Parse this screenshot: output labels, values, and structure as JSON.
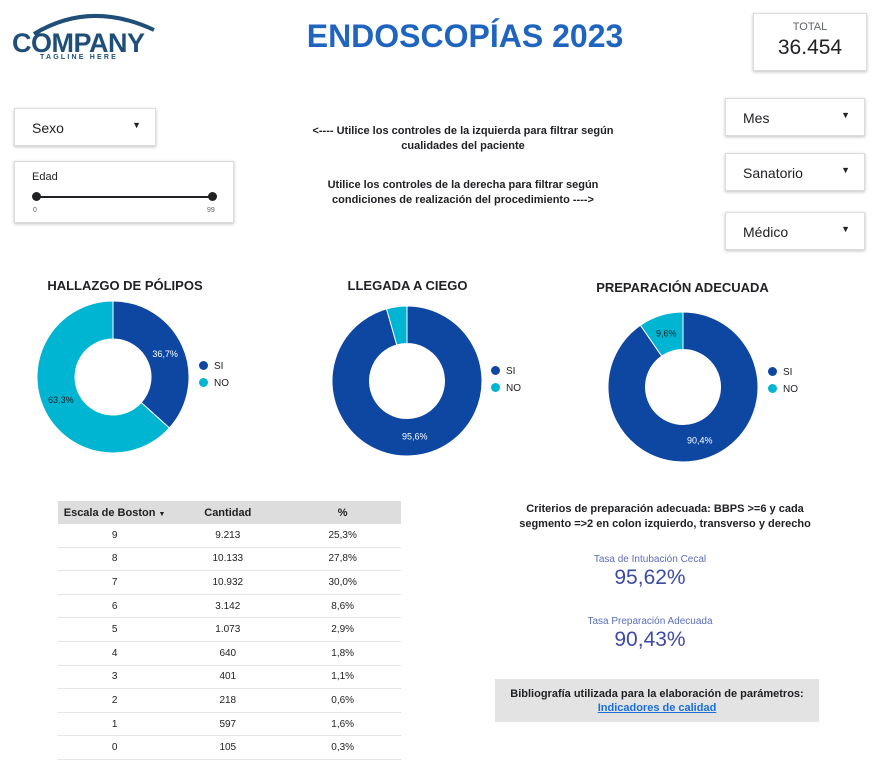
{
  "logo": {
    "name": "COMPANY",
    "tagline": "TAGLINE HERE"
  },
  "title": "ENDOSCOPÍAS 2023",
  "total": {
    "label": "TOTAL",
    "value": "36.454"
  },
  "filters_left": {
    "sexo": "Sexo",
    "edad": {
      "label": "Edad",
      "min": "0",
      "max": "99"
    }
  },
  "filters_right": {
    "mes": "Mes",
    "sanatorio": "Sanatorio",
    "medico": "Médico"
  },
  "hints": {
    "left_1": "<----  Utilice los controles de la izquierda para filtrar según",
    "left_2": "cualidades del paciente",
    "right_1": "Utilice los controles de la derecha para filtrar según",
    "right_2": "condiciones de realización del procedimiento ---->"
  },
  "colors": {
    "dark_blue": "#0d47a1",
    "cyan": "#00b5d1",
    "title_blue": "#1f65c0"
  },
  "legend": {
    "si": "SI",
    "no": "NO"
  },
  "chart_data": [
    {
      "type": "pie",
      "title": "HALLAZGO DE PÓLIPOS",
      "categories": [
        "SI",
        "NO"
      ],
      "values": [
        36.7,
        63.3
      ],
      "labels": [
        "36,7%",
        "63,3%"
      ],
      "legend": "right"
    },
    {
      "type": "pie",
      "title": "LLEGADA A CIEGO",
      "categories": [
        "SI",
        "NO"
      ],
      "values": [
        95.6,
        4.4
      ],
      "labels": [
        "95,6%",
        ""
      ],
      "legend": "right"
    },
    {
      "type": "pie",
      "title": "PREPARACIÓN ADECUADA",
      "categories": [
        "SI",
        "NO"
      ],
      "values": [
        90.4,
        9.6
      ],
      "labels": [
        "90,4%",
        "9,6%"
      ],
      "legend": "right"
    }
  ],
  "table": {
    "headers": [
      "Escala de Boston",
      "Cantidad",
      "%"
    ],
    "sort_icon": "caret-down-icon",
    "rows": [
      [
        "9",
        "9.213",
        "25,3%"
      ],
      [
        "8",
        "10.133",
        "27,8%"
      ],
      [
        "7",
        "10.932",
        "30,0%"
      ],
      [
        "6",
        "3.142",
        "8,6%"
      ],
      [
        "5",
        "1.073",
        "2,9%"
      ],
      [
        "4",
        "640",
        "1,8%"
      ],
      [
        "3",
        "401",
        "1,1%"
      ],
      [
        "2",
        "218",
        "0,6%"
      ],
      [
        "1",
        "597",
        "1,6%"
      ],
      [
        "0",
        "105",
        "0,3%"
      ]
    ]
  },
  "criteria": {
    "line1": "Criterios de preparación adecuada: BBPS >=6 y cada",
    "line2": "segmento =>2 en colon izquierdo, transverso y derecho"
  },
  "kpis": {
    "intubacion": {
      "label": "Tasa de Intubación Cecal",
      "value": "95,62%"
    },
    "preparacion": {
      "label": "Tasa Preparación Adecuada",
      "value": "90,43%"
    }
  },
  "bibliography": {
    "text": "Bibliografía utilizada para la elaboración de parámetros:",
    "link": "Indicadores de calidad"
  }
}
